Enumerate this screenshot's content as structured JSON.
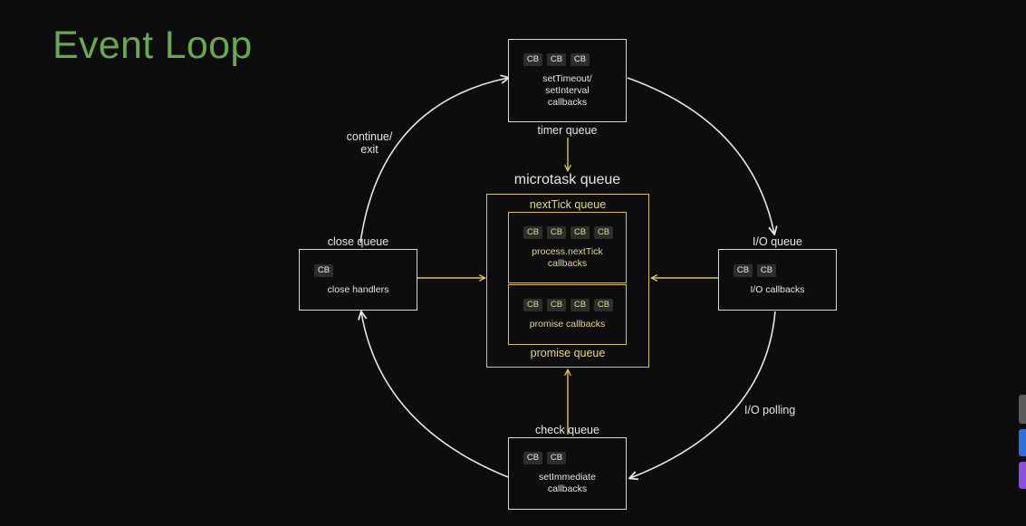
{
  "title": "Event Loop",
  "cb_label": "CB",
  "nodes": {
    "timer": {
      "label": "timer queue",
      "body": "setTimeout/\nsetInterval\ncallbacks",
      "cb_count": 3
    },
    "io": {
      "label": "I/O queue",
      "body": "I/O callbacks",
      "cb_count": 2
    },
    "check": {
      "label": "check queue",
      "body": "setImmediate\ncallbacks",
      "cb_count": 2
    },
    "close": {
      "label": "close queue",
      "body": "close handlers",
      "cb_count": 1
    }
  },
  "microtask": {
    "label": "microtask queue",
    "nexttick": {
      "label": "nextTick queue",
      "body": "process.nextTick\ncallbacks",
      "cb_count": 4
    },
    "promise": {
      "label": "promise queue",
      "body": "promise callbacks",
      "cb_count": 4
    }
  },
  "edge_labels": {
    "continue_exit": "continue/\nexit",
    "io_polling": "I/O polling"
  },
  "colors": {
    "title": "#6aa84f",
    "white_border": "#d9d9d9",
    "yellow_accent": "#d6c36a",
    "cb_chip": "#2a2f2a",
    "background": "#0d0d0d"
  }
}
